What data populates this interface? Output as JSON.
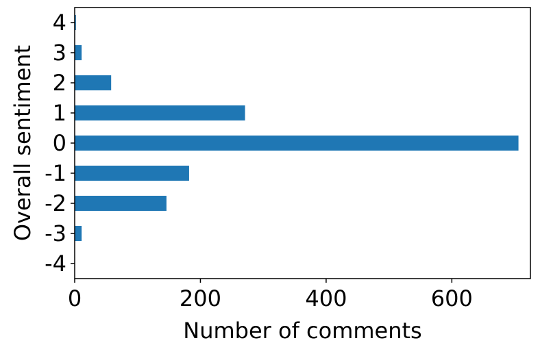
{
  "chart_data": {
    "type": "bar",
    "orientation": "horizontal",
    "categories": [
      "4",
      "3",
      "2",
      "1",
      "0",
      "-1",
      "-2",
      "-3",
      "-4"
    ],
    "values": [
      2,
      11,
      58,
      271,
      706,
      182,
      146,
      11,
      0
    ],
    "xlabel": "Number of comments",
    "ylabel": "Overall sentiment",
    "xlim": [
      0,
      725
    ],
    "xticks": [
      0,
      200,
      400,
      600
    ],
    "xtick_labels": [
      "0",
      "200",
      "400",
      "600"
    ],
    "grid": false,
    "bar_color": "#1f77b4"
  }
}
